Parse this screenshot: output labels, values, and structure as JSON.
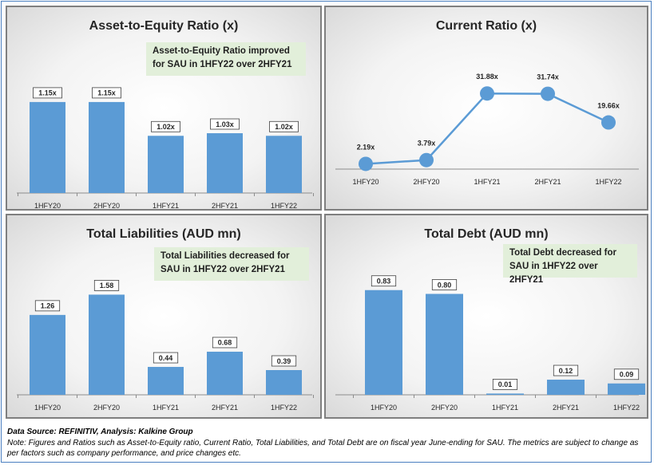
{
  "colors": {
    "bar": "#5b9bd5",
    "line": "#5b9bd5"
  },
  "chart_data": [
    {
      "type": "bar",
      "title": "Asset-to-Equity Ratio (x)",
      "annotation": "Asset-to-Equity Ratio improved for SAU in 1HFY22 over 2HFY21",
      "categories": [
        "1HFY20",
        "2HFY20",
        "1HFY21",
        "2HFY21",
        "1HFY22"
      ],
      "values": [
        1.15,
        1.15,
        1.02,
        1.03,
        1.02
      ],
      "labels": [
        "1.15x",
        "1.15x",
        "1.02x",
        "1.03x",
        "1.02x"
      ],
      "ylim": [
        0.8,
        1.3
      ]
    },
    {
      "type": "line",
      "title": "Current Ratio (x)",
      "categories": [
        "1HFY20",
        "2HFY20",
        "1HFY21",
        "2HFY21",
        "1HFY22"
      ],
      "values": [
        2.19,
        3.79,
        31.88,
        31.74,
        19.66
      ],
      "labels": [
        "2.19x",
        "3.79x",
        "31.88x",
        "31.74x",
        "19.66x"
      ],
      "ylim": [
        0,
        38
      ]
    },
    {
      "type": "bar",
      "title": "Total Liabilities (AUD mn)",
      "annotation": "Total Liabilities decreased for SAU in 1HFY22 over 2HFY21",
      "categories": [
        "1HFY20",
        "2HFY20",
        "1HFY21",
        "2HFY21",
        "1HFY22"
      ],
      "values": [
        1.26,
        1.58,
        0.44,
        0.68,
        0.39
      ],
      "labels": [
        "1.26",
        "1.58",
        "0.44",
        "0.68",
        "0.39"
      ],
      "ylim": [
        0,
        1.95
      ]
    },
    {
      "type": "bar",
      "title": "Total Debt (AUD mn)",
      "annotation": "Total Debt decreased for SAU in 1HFY22 over 2HFY21",
      "categories": [
        "1HFY20",
        "2HFY20",
        "1HFY21",
        "2HFY21",
        "1HFY22"
      ],
      "values": [
        0.83,
        0.8,
        0.01,
        0.12,
        0.09
      ],
      "labels": [
        "0.83",
        "0.80",
        "0.01",
        "0.12",
        "0.09"
      ],
      "ylim": [
        0,
        0.98
      ]
    }
  ],
  "footer": {
    "source": "Data Source: REFINITIV, Analysis: Kalkine Group",
    "note": "Note: Figures and Ratios such as Asset-to-Equity ratio, Current Ratio, Total Liabilities, and Total Debt are on fiscal year June-ending for SAU. The metrics are subject to change as per factors such as company performance, and price changes etc."
  }
}
